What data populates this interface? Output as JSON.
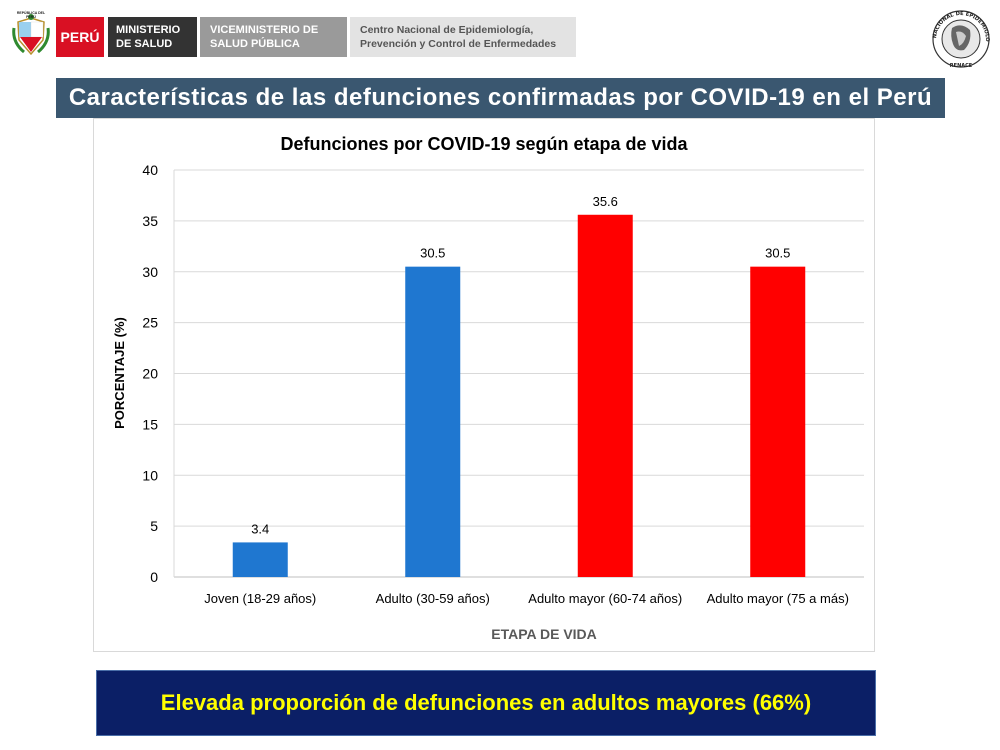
{
  "header": {
    "shield_caption": "REPÚBLICA DEL PERÚ",
    "peru_label": "PERÚ",
    "ministry": [
      "MINISTERIO",
      "DE SALUD"
    ],
    "vice_ministry": [
      "VICEMINISTERIO DE",
      "SALUD PÚBLICA"
    ],
    "center": [
      "Centro Nacional de Epidemiología,",
      "Prevención y Control de Enfermedades"
    ],
    "renace_ring_text": "RED NACIONAL DE EPIDEMIOLOGÍA",
    "renace_bottom": "RENACE"
  },
  "banner_title": "Características de las defunciones confirmadas por COVID-19 en el Perú",
  "chart_data": {
    "type": "bar",
    "title": "Defunciones por COVID-19 según etapa de vida",
    "xlabel": "ETAPA DE VIDA",
    "ylabel": "PORCENTAJE (%)",
    "categories": [
      "Joven (18-29 años)",
      "Adulto (30-59 años)",
      "Adulto mayor (60-74 años)",
      "Adulto mayor (75 a más)"
    ],
    "values": [
      3.4,
      30.5,
      35.6,
      30.5
    ],
    "value_labels": [
      "3.4",
      "30.5",
      "35.6",
      "30.5"
    ],
    "colors": [
      "#1f77d0",
      "#1f77d0",
      "#ff0000",
      "#ff0000"
    ],
    "ylim": [
      0,
      40
    ],
    "yticks": [
      0,
      5,
      10,
      15,
      20,
      25,
      30,
      35,
      40
    ],
    "grid": true,
    "legend": "none"
  },
  "callout": "Elevada proporción de defunciones en adultos mayores (66%)",
  "colors": {
    "banner_bg": "#3a5770",
    "callout_bg": "#0b1f66",
    "callout_text": "#ffff00",
    "peru_red": "#d91023"
  }
}
